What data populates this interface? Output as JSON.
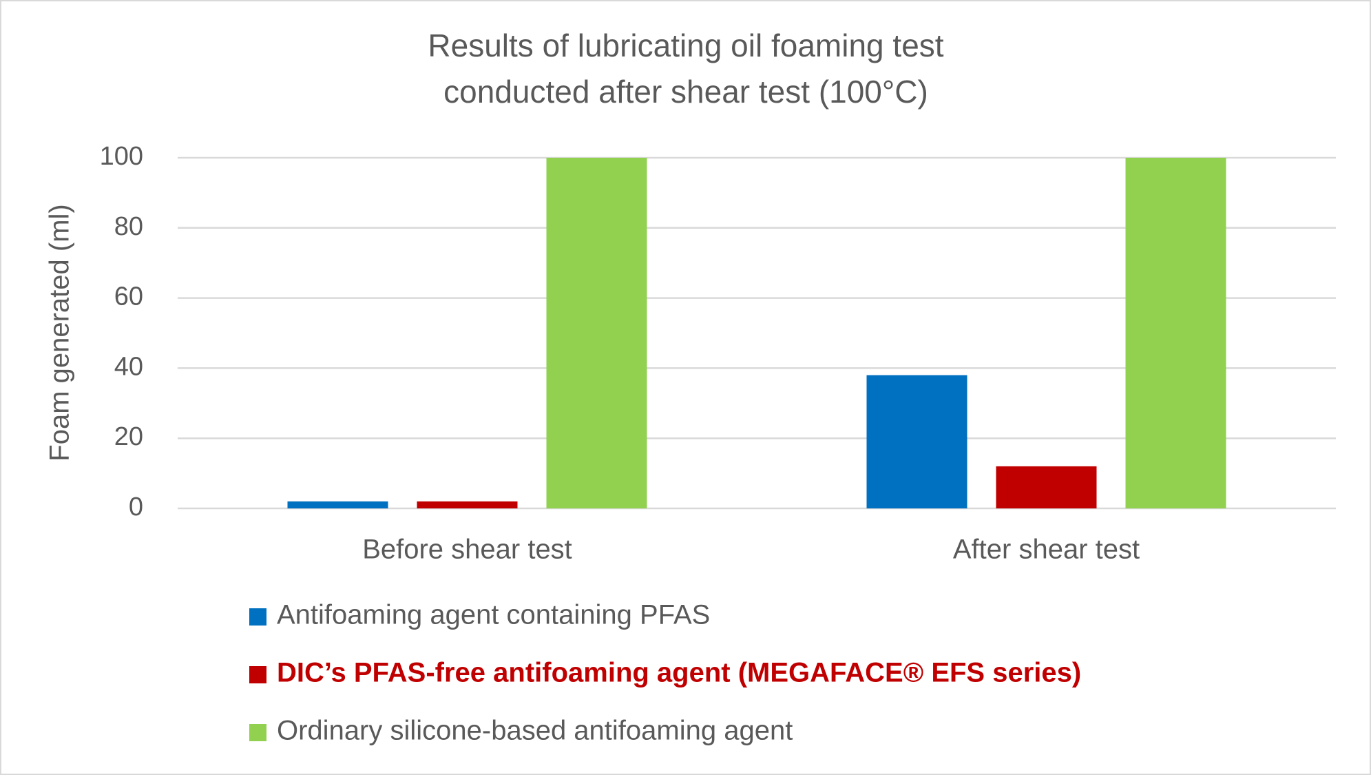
{
  "chart_data": {
    "type": "bar",
    "title": [
      "Results of lubricating oil foaming test",
      "conducted after shear test (100°C)"
    ],
    "y_label": "Foam generated (ml)",
    "categories": [
      "Before shear test",
      "After shear test"
    ],
    "series": [
      {
        "name": "Antifoaming agent containing PFAS",
        "color": "#0070c0",
        "values": [
          2,
          38
        ]
      },
      {
        "name": "DIC’s PFAS-free antifoaming agent (MEGAFACE® EFS series)",
        "color": "#c00000",
        "values": [
          2,
          12
        ],
        "legend_bold": true
      },
      {
        "name": "Ordinary silicone-based antifoaming agent",
        "color": "#92d050",
        "values": [
          100,
          100
        ]
      }
    ],
    "ylim": [
      0,
      100
    ],
    "yticks": [
      0,
      20,
      40,
      60,
      80,
      100
    ],
    "grid": true,
    "legend": "bottom"
  }
}
